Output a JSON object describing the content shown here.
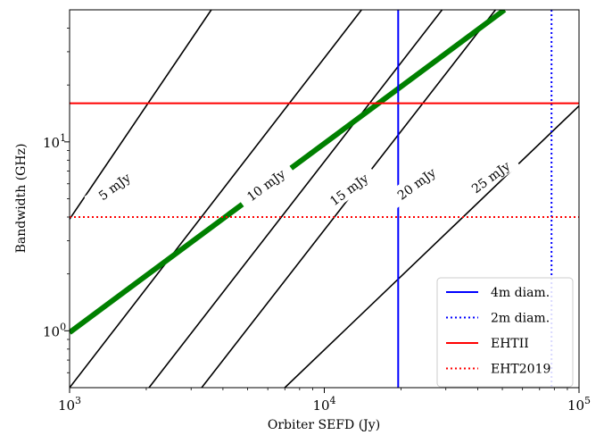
{
  "chart_data": {
    "type": "line",
    "xscale": "log",
    "yscale": "log",
    "xlim": [
      1000,
      100000
    ],
    "ylim": [
      0.5,
      50
    ],
    "xlabel": "Orbiter SEFD (Jy)",
    "ylabel": "Bandwidth (GHz)",
    "x_ticks": [
      {
        "value": 1000,
        "base": "10",
        "exp": "3"
      },
      {
        "value": 10000,
        "base": "10",
        "exp": "4"
      },
      {
        "value": 100000,
        "base": "10",
        "exp": "5"
      }
    ],
    "y_ticks": [
      {
        "value": 1,
        "base": "10",
        "exp": "0"
      },
      {
        "value": 10,
        "base": "10",
        "exp": "1"
      }
    ],
    "sensitivity_contours": [
      {
        "label": "5 mJy",
        "points": [
          [
            1000,
            3.9
          ],
          [
            3600,
            50
          ]
        ],
        "label_at": [
          1500,
          5.8
        ],
        "color": "#000000",
        "highlight": false
      },
      {
        "label": "10 mJy",
        "points": [
          [
            1000,
            0.5
          ],
          [
            14000,
            50
          ]
        ],
        "label_at": [
          5900,
          5.9
        ],
        "color": "#000000",
        "highlight": false
      },
      {
        "label": "15 mJy",
        "points": [
          [
            2050,
            0.5
          ],
          [
            29000,
            50
          ]
        ],
        "label_at": [
          12500,
          5.6
        ],
        "color": "#000000",
        "highlight": false
      },
      {
        "label": "20 mJy",
        "points": [
          [
            3300,
            0.5
          ],
          [
            47000,
            50
          ]
        ],
        "label_at": [
          23000,
          6.0
        ],
        "color": "#000000",
        "highlight": false
      },
      {
        "label": "25 mJy",
        "points": [
          [
            7000,
            0.5
          ],
          [
            100000,
            15.5
          ]
        ],
        "label_at": [
          45000,
          6.5
        ],
        "color": "#000000",
        "highlight": false
      },
      {
        "label": "",
        "points": [
          [
            1000,
            0.98
          ],
          [
            51000,
            50
          ]
        ],
        "color": "#008000",
        "highlight": true
      }
    ],
    "series": [
      {
        "name": "4m diam.",
        "orientation": "vertical",
        "value": 19500,
        "color": "#0000ff",
        "style": "solid"
      },
      {
        "name": "2m diam.",
        "orientation": "vertical",
        "value": 78000,
        "color": "#0000ff",
        "style": "dotted"
      },
      {
        "name": "EHTII",
        "orientation": "horizontal",
        "value": 16,
        "color": "#ff0000",
        "style": "solid"
      },
      {
        "name": "EHT2019",
        "orientation": "horizontal",
        "value": 4,
        "color": "#ff0000",
        "style": "dotted"
      }
    ],
    "legend_position": "bottom-right",
    "grid": false
  }
}
